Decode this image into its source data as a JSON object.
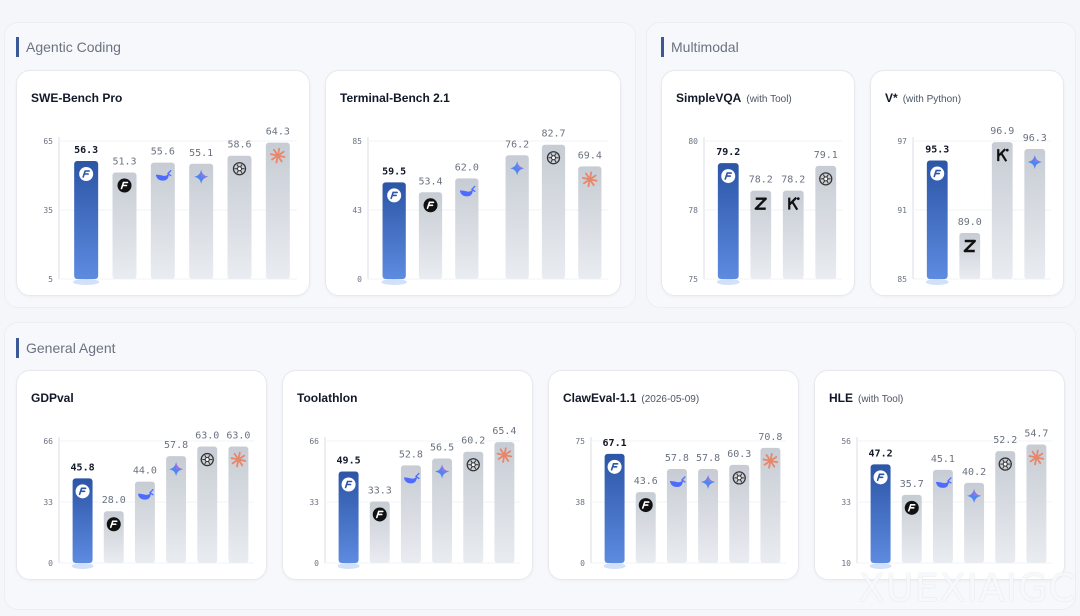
{
  "sections": [
    {
      "title": "Agentic Coding"
    },
    {
      "title": "Multimodal"
    },
    {
      "title": "General Agent"
    }
  ],
  "watermark": "XUEXIAIGC",
  "colors": {
    "highlight_top": "#2c55a6",
    "highlight_bottom": "#5d8be0",
    "bar_top": "#c7ccd4",
    "bar_bottom": "#e9ecf0",
    "value_bold": "#111827",
    "value_dim": "#6b7280"
  },
  "chart_data": [
    {
      "type": "bar",
      "title": "SWE-Bench Pro",
      "subtitle": "",
      "yticks": [
        65,
        35,
        5
      ],
      "ylim": [
        5,
        65
      ],
      "values": [
        56.3,
        51.3,
        55.6,
        55.1,
        58.6,
        64.3
      ],
      "value_labels": [
        "56.3",
        "51.3",
        "55.6",
        "55.1",
        "58.6",
        "64.3"
      ],
      "icons": [
        "logo-a",
        "logo-a-dark",
        "whale",
        "sparkle",
        "openai",
        "claude"
      ],
      "highlight": 0
    },
    {
      "type": "bar",
      "title": "Terminal-Bench 2.1",
      "subtitle": "",
      "yticks": [
        85,
        43,
        0
      ],
      "ylim": [
        0,
        85
      ],
      "values": [
        59.5,
        53.4,
        62.0,
        76.2,
        82.7,
        69.4
      ],
      "value_labels": [
        "59.5",
        "53.4",
        "62.0",
        "76.2",
        "82.7",
        "69.4"
      ],
      "icons": [
        "logo-a",
        "logo-a-dark",
        "whale",
        "sparkle",
        "openai",
        "claude"
      ],
      "highlight": 0,
      "gap_after": 2
    },
    {
      "type": "bar",
      "title": "SimpleVQA",
      "subtitle": "(with Tool)",
      "yticks": [
        80,
        78,
        75
      ],
      "ylim": [
        75,
        80
      ],
      "values": [
        79.2,
        78.2,
        78.2,
        79.1
      ],
      "value_labels": [
        "79.2",
        "78.2",
        "78.2",
        "79.1"
      ],
      "icons": [
        "logo-a",
        "zhipu",
        "kimi",
        "openai"
      ],
      "highlight": 0
    },
    {
      "type": "bar",
      "title": "V*",
      "subtitle": "(with Python)",
      "yticks": [
        97,
        91,
        85
      ],
      "ylim": [
        85,
        97
      ],
      "values": [
        95.3,
        89.0,
        96.9,
        96.3
      ],
      "value_labels": [
        "95.3",
        "89.0",
        "96.9",
        "96.3"
      ],
      "icons": [
        "logo-a",
        "zhipu",
        "kimi",
        "sparkle"
      ],
      "highlight": 0
    },
    {
      "type": "bar",
      "title": "GDPval",
      "subtitle": "",
      "yticks": [
        66,
        33,
        0
      ],
      "ylim": [
        0,
        66
      ],
      "values": [
        45.8,
        28.0,
        44.0,
        57.8,
        63.0,
        63.0
      ],
      "value_labels": [
        "45.8",
        "28.0",
        "44.0",
        "57.8",
        "63.0",
        "63.0"
      ],
      "icons": [
        "logo-a",
        "logo-a-dark",
        "whale",
        "sparkle",
        "openai",
        "claude"
      ],
      "highlight": 0
    },
    {
      "type": "bar",
      "title": "Toolathlon",
      "subtitle": "",
      "yticks": [
        66,
        33,
        0
      ],
      "ylim": [
        0,
        66
      ],
      "values": [
        49.5,
        33.3,
        52.8,
        56.5,
        60.2,
        65.4
      ],
      "value_labels": [
        "49.5",
        "33.3",
        "52.8",
        "56.5",
        "60.2",
        "65.4"
      ],
      "icons": [
        "logo-a",
        "logo-a-dark",
        "whale",
        "sparkle",
        "openai",
        "claude"
      ],
      "highlight": 0
    },
    {
      "type": "bar",
      "title": "ClawEval-1.1",
      "subtitle": "(2026-05-09)",
      "yticks": [
        75,
        38,
        0
      ],
      "ylim": [
        0,
        75
      ],
      "values": [
        67.1,
        43.6,
        57.8,
        57.8,
        60.3,
        70.8
      ],
      "value_labels": [
        "67.1",
        "43.6",
        "57.8",
        "57.8",
        "60.3",
        "70.8"
      ],
      "icons": [
        "logo-a",
        "logo-a-dark",
        "whale",
        "sparkle",
        "openai",
        "claude"
      ],
      "highlight": 0
    },
    {
      "type": "bar",
      "title": "HLE",
      "subtitle": "(with Tool)",
      "yticks": [
        56,
        33,
        10
      ],
      "ylim": [
        10,
        56
      ],
      "values": [
        47.2,
        35.7,
        45.1,
        40.2,
        52.2,
        54.7
      ],
      "value_labels": [
        "47.2",
        "35.7",
        "45.1",
        "40.2",
        "52.2",
        "54.7"
      ],
      "icons": [
        "logo-a",
        "logo-a-dark",
        "whale",
        "sparkle",
        "openai",
        "claude"
      ],
      "highlight": 0
    }
  ]
}
